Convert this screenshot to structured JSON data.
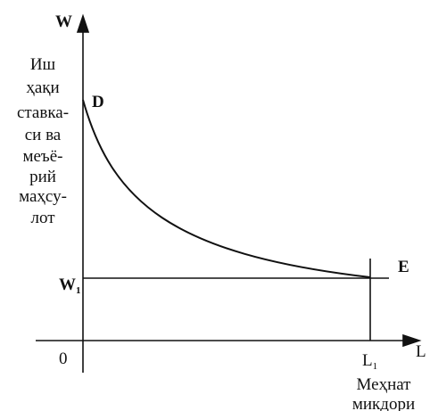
{
  "axes": {
    "y_label": "W",
    "x_label": "L",
    "origin": "0"
  },
  "y_description": [
    "Иш",
    "ҳақи",
    "ставка-",
    "си ва",
    "меъё-",
    "рий",
    "маҳсу-",
    "лот"
  ],
  "x_description": [
    "Меҳнат",
    "микдори"
  ],
  "curve": {
    "start_label": "D",
    "end_label": "E"
  },
  "levels": {
    "w1": {
      "label": "W",
      "subscript": "1"
    },
    "l1": {
      "label": "L",
      "subscript": "1"
    }
  }
}
